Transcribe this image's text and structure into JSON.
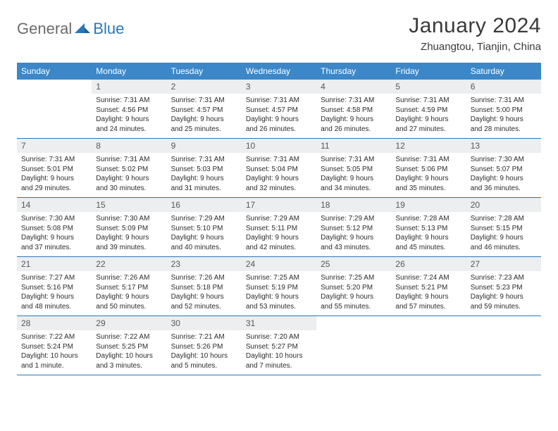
{
  "brand": {
    "part1": "General",
    "part2": "Blue"
  },
  "title": "January 2024",
  "location": "Zhuangtou, Tianjin, China",
  "colors": {
    "header_bg": "#3b87c8",
    "header_text": "#ffffff",
    "daynum_bg": "#eceef0",
    "daynum_text": "#55575a",
    "rule": "#2a77b8",
    "logo_gray": "#6b6b6b",
    "logo_blue": "#2a77b8"
  },
  "weekdays": [
    "Sunday",
    "Monday",
    "Tuesday",
    "Wednesday",
    "Thursday",
    "Friday",
    "Saturday"
  ],
  "weeks": [
    [
      {
        "n": "",
        "lines": []
      },
      {
        "n": "1",
        "lines": [
          "Sunrise: 7:31 AM",
          "Sunset: 4:56 PM",
          "Daylight: 9 hours",
          "and 24 minutes."
        ]
      },
      {
        "n": "2",
        "lines": [
          "Sunrise: 7:31 AM",
          "Sunset: 4:57 PM",
          "Daylight: 9 hours",
          "and 25 minutes."
        ]
      },
      {
        "n": "3",
        "lines": [
          "Sunrise: 7:31 AM",
          "Sunset: 4:57 PM",
          "Daylight: 9 hours",
          "and 26 minutes."
        ]
      },
      {
        "n": "4",
        "lines": [
          "Sunrise: 7:31 AM",
          "Sunset: 4:58 PM",
          "Daylight: 9 hours",
          "and 26 minutes."
        ]
      },
      {
        "n": "5",
        "lines": [
          "Sunrise: 7:31 AM",
          "Sunset: 4:59 PM",
          "Daylight: 9 hours",
          "and 27 minutes."
        ]
      },
      {
        "n": "6",
        "lines": [
          "Sunrise: 7:31 AM",
          "Sunset: 5:00 PM",
          "Daylight: 9 hours",
          "and 28 minutes."
        ]
      }
    ],
    [
      {
        "n": "7",
        "lines": [
          "Sunrise: 7:31 AM",
          "Sunset: 5:01 PM",
          "Daylight: 9 hours",
          "and 29 minutes."
        ]
      },
      {
        "n": "8",
        "lines": [
          "Sunrise: 7:31 AM",
          "Sunset: 5:02 PM",
          "Daylight: 9 hours",
          "and 30 minutes."
        ]
      },
      {
        "n": "9",
        "lines": [
          "Sunrise: 7:31 AM",
          "Sunset: 5:03 PM",
          "Daylight: 9 hours",
          "and 31 minutes."
        ]
      },
      {
        "n": "10",
        "lines": [
          "Sunrise: 7:31 AM",
          "Sunset: 5:04 PM",
          "Daylight: 9 hours",
          "and 32 minutes."
        ]
      },
      {
        "n": "11",
        "lines": [
          "Sunrise: 7:31 AM",
          "Sunset: 5:05 PM",
          "Daylight: 9 hours",
          "and 34 minutes."
        ]
      },
      {
        "n": "12",
        "lines": [
          "Sunrise: 7:31 AM",
          "Sunset: 5:06 PM",
          "Daylight: 9 hours",
          "and 35 minutes."
        ]
      },
      {
        "n": "13",
        "lines": [
          "Sunrise: 7:30 AM",
          "Sunset: 5:07 PM",
          "Daylight: 9 hours",
          "and 36 minutes."
        ]
      }
    ],
    [
      {
        "n": "14",
        "lines": [
          "Sunrise: 7:30 AM",
          "Sunset: 5:08 PM",
          "Daylight: 9 hours",
          "and 37 minutes."
        ]
      },
      {
        "n": "15",
        "lines": [
          "Sunrise: 7:30 AM",
          "Sunset: 5:09 PM",
          "Daylight: 9 hours",
          "and 39 minutes."
        ]
      },
      {
        "n": "16",
        "lines": [
          "Sunrise: 7:29 AM",
          "Sunset: 5:10 PM",
          "Daylight: 9 hours",
          "and 40 minutes."
        ]
      },
      {
        "n": "17",
        "lines": [
          "Sunrise: 7:29 AM",
          "Sunset: 5:11 PM",
          "Daylight: 9 hours",
          "and 42 minutes."
        ]
      },
      {
        "n": "18",
        "lines": [
          "Sunrise: 7:29 AM",
          "Sunset: 5:12 PM",
          "Daylight: 9 hours",
          "and 43 minutes."
        ]
      },
      {
        "n": "19",
        "lines": [
          "Sunrise: 7:28 AM",
          "Sunset: 5:13 PM",
          "Daylight: 9 hours",
          "and 45 minutes."
        ]
      },
      {
        "n": "20",
        "lines": [
          "Sunrise: 7:28 AM",
          "Sunset: 5:15 PM",
          "Daylight: 9 hours",
          "and 46 minutes."
        ]
      }
    ],
    [
      {
        "n": "21",
        "lines": [
          "Sunrise: 7:27 AM",
          "Sunset: 5:16 PM",
          "Daylight: 9 hours",
          "and 48 minutes."
        ]
      },
      {
        "n": "22",
        "lines": [
          "Sunrise: 7:26 AM",
          "Sunset: 5:17 PM",
          "Daylight: 9 hours",
          "and 50 minutes."
        ]
      },
      {
        "n": "23",
        "lines": [
          "Sunrise: 7:26 AM",
          "Sunset: 5:18 PM",
          "Daylight: 9 hours",
          "and 52 minutes."
        ]
      },
      {
        "n": "24",
        "lines": [
          "Sunrise: 7:25 AM",
          "Sunset: 5:19 PM",
          "Daylight: 9 hours",
          "and 53 minutes."
        ]
      },
      {
        "n": "25",
        "lines": [
          "Sunrise: 7:25 AM",
          "Sunset: 5:20 PM",
          "Daylight: 9 hours",
          "and 55 minutes."
        ]
      },
      {
        "n": "26",
        "lines": [
          "Sunrise: 7:24 AM",
          "Sunset: 5:21 PM",
          "Daylight: 9 hours",
          "and 57 minutes."
        ]
      },
      {
        "n": "27",
        "lines": [
          "Sunrise: 7:23 AM",
          "Sunset: 5:23 PM",
          "Daylight: 9 hours",
          "and 59 minutes."
        ]
      }
    ],
    [
      {
        "n": "28",
        "lines": [
          "Sunrise: 7:22 AM",
          "Sunset: 5:24 PM",
          "Daylight: 10 hours",
          "and 1 minute."
        ]
      },
      {
        "n": "29",
        "lines": [
          "Sunrise: 7:22 AM",
          "Sunset: 5:25 PM",
          "Daylight: 10 hours",
          "and 3 minutes."
        ]
      },
      {
        "n": "30",
        "lines": [
          "Sunrise: 7:21 AM",
          "Sunset: 5:26 PM",
          "Daylight: 10 hours",
          "and 5 minutes."
        ]
      },
      {
        "n": "31",
        "lines": [
          "Sunrise: 7:20 AM",
          "Sunset: 5:27 PM",
          "Daylight: 10 hours",
          "and 7 minutes."
        ]
      },
      {
        "n": "",
        "lines": []
      },
      {
        "n": "",
        "lines": []
      },
      {
        "n": "",
        "lines": []
      }
    ]
  ]
}
